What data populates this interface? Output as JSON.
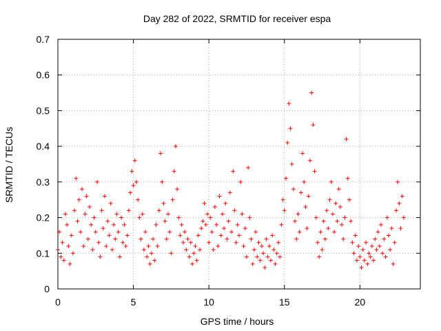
{
  "chart_data": {
    "type": "scatter",
    "title": "Day 282 of 2022, SRMTID for receiver espa",
    "xlabel": "GPS time / hours",
    "ylabel": "SRMTID / TECUs",
    "xlim": [
      0,
      24
    ],
    "ylim": [
      0,
      0.7
    ],
    "xticks": [
      0,
      5,
      10,
      15,
      20
    ],
    "yticks": [
      0,
      0.1,
      0.2,
      0.3,
      0.4,
      0.5,
      0.6,
      0.7
    ],
    "grid": true,
    "marker": "+",
    "color": "#ff0000",
    "series": [
      {
        "name": "SRMTID",
        "points": [
          [
            0.0,
            0.11
          ],
          [
            0.1,
            0.16
          ],
          [
            0.2,
            0.09
          ],
          [
            0.3,
            0.13
          ],
          [
            0.4,
            0.08
          ],
          [
            0.5,
            0.21
          ],
          [
            0.6,
            0.18
          ],
          [
            0.7,
            0.12
          ],
          [
            0.8,
            0.07
          ],
          [
            0.9,
            0.15
          ],
          [
            1.0,
            0.1
          ],
          [
            1.1,
            0.22
          ],
          [
            1.2,
            0.31
          ],
          [
            1.3,
            0.19
          ],
          [
            1.4,
            0.25
          ],
          [
            1.5,
            0.16
          ],
          [
            1.6,
            0.28
          ],
          [
            1.7,
            0.12
          ],
          [
            1.8,
            0.21
          ],
          [
            1.9,
            0.26
          ],
          [
            2.0,
            0.14
          ],
          [
            2.1,
            0.23
          ],
          [
            2.2,
            0.18
          ],
          [
            2.3,
            0.11
          ],
          [
            2.4,
            0.2
          ],
          [
            2.5,
            0.16
          ],
          [
            2.6,
            0.3
          ],
          [
            2.7,
            0.13
          ],
          [
            2.8,
            0.09
          ],
          [
            2.9,
            0.22
          ],
          [
            3.0,
            0.17
          ],
          [
            3.1,
            0.26
          ],
          [
            3.2,
            0.12
          ],
          [
            3.3,
            0.19
          ],
          [
            3.4,
            0.15
          ],
          [
            3.5,
            0.24
          ],
          [
            3.6,
            0.11
          ],
          [
            3.7,
            0.18
          ],
          [
            3.8,
            0.14
          ],
          [
            3.9,
            0.21
          ],
          [
            4.0,
            0.16
          ],
          [
            4.1,
            0.09
          ],
          [
            4.2,
            0.2
          ],
          [
            4.3,
            0.13
          ],
          [
            4.4,
            0.18
          ],
          [
            4.5,
            0.12
          ],
          [
            4.6,
            0.15
          ],
          [
            4.7,
            0.22
          ],
          [
            4.8,
            0.27
          ],
          [
            4.9,
            0.33
          ],
          [
            5.0,
            0.29
          ],
          [
            5.1,
            0.36
          ],
          [
            5.2,
            0.3
          ],
          [
            5.3,
            0.25
          ],
          [
            5.4,
            0.2
          ],
          [
            5.5,
            0.14
          ],
          [
            5.6,
            0.21
          ],
          [
            5.7,
            0.11
          ],
          [
            5.8,
            0.16
          ],
          [
            5.9,
            0.09
          ],
          [
            6.0,
            0.12
          ],
          [
            6.1,
            0.07
          ],
          [
            6.2,
            0.1
          ],
          [
            6.3,
            0.14
          ],
          [
            6.4,
            0.08
          ],
          [
            6.5,
            0.18
          ],
          [
            6.6,
            0.12
          ],
          [
            6.7,
            0.22
          ],
          [
            6.8,
            0.38
          ],
          [
            6.9,
            0.3
          ],
          [
            7.0,
            0.24
          ],
          [
            7.1,
            0.19
          ],
          [
            7.2,
            0.14
          ],
          [
            7.3,
            0.21
          ],
          [
            7.4,
            0.16
          ],
          [
            7.5,
            0.1
          ],
          [
            7.6,
            0.25
          ],
          [
            7.7,
            0.33
          ],
          [
            7.8,
            0.4
          ],
          [
            7.9,
            0.28
          ],
          [
            8.0,
            0.2
          ],
          [
            8.1,
            0.15
          ],
          [
            8.2,
            0.18
          ],
          [
            8.3,
            0.13
          ],
          [
            8.4,
            0.16
          ],
          [
            8.5,
            0.11
          ],
          [
            8.6,
            0.14
          ],
          [
            8.7,
            0.09
          ],
          [
            8.8,
            0.13
          ],
          [
            8.9,
            0.07
          ],
          [
            9.0,
            0.1
          ],
          [
            9.1,
            0.12
          ],
          [
            9.2,
            0.08
          ],
          [
            9.3,
            0.15
          ],
          [
            9.4,
            0.11
          ],
          [
            9.5,
            0.17
          ],
          [
            9.6,
            0.19
          ],
          [
            9.7,
            0.24
          ],
          [
            9.8,
            0.18
          ],
          [
            9.9,
            0.21
          ],
          [
            10.0,
            0.13
          ],
          [
            10.1,
            0.2
          ],
          [
            10.2,
            0.16
          ],
          [
            10.3,
            0.11
          ],
          [
            10.4,
            0.23
          ],
          [
            10.5,
            0.18
          ],
          [
            10.6,
            0.12
          ],
          [
            10.7,
            0.26
          ],
          [
            10.8,
            0.15
          ],
          [
            10.9,
            0.21
          ],
          [
            11.0,
            0.17
          ],
          [
            11.1,
            0.24
          ],
          [
            11.2,
            0.14
          ],
          [
            11.3,
            0.19
          ],
          [
            11.4,
            0.27
          ],
          [
            11.5,
            0.16
          ],
          [
            11.6,
            0.33
          ],
          [
            11.7,
            0.22
          ],
          [
            11.8,
            0.13
          ],
          [
            11.9,
            0.18
          ],
          [
            12.0,
            0.15
          ],
          [
            12.1,
            0.3
          ],
          [
            12.2,
            0.21
          ],
          [
            12.3,
            0.12
          ],
          [
            12.4,
            0.17
          ],
          [
            12.5,
            0.09
          ],
          [
            12.6,
            0.34
          ],
          [
            12.7,
            0.2
          ],
          [
            12.8,
            0.14
          ],
          [
            12.9,
            0.07
          ],
          [
            13.0,
            0.11
          ],
          [
            13.1,
            0.16
          ],
          [
            13.2,
            0.09
          ],
          [
            13.3,
            0.13
          ],
          [
            13.4,
            0.08
          ],
          [
            13.5,
            0.12
          ],
          [
            13.6,
            0.1
          ],
          [
            13.7,
            0.06
          ],
          [
            13.8,
            0.14
          ],
          [
            13.9,
            0.09
          ],
          [
            14.0,
            0.12
          ],
          [
            14.1,
            0.08
          ],
          [
            14.2,
            0.15
          ],
          [
            14.3,
            0.11
          ],
          [
            14.4,
            0.07
          ],
          [
            14.5,
            0.1
          ],
          [
            14.6,
            0.13
          ],
          [
            14.7,
            0.09
          ],
          [
            14.8,
            0.18
          ],
          [
            14.9,
            0.25
          ],
          [
            15.0,
            0.22
          ],
          [
            15.1,
            0.31
          ],
          [
            15.2,
            0.41
          ],
          [
            15.3,
            0.52
          ],
          [
            15.4,
            0.45
          ],
          [
            15.5,
            0.35
          ],
          [
            15.6,
            0.28
          ],
          [
            15.7,
            0.19
          ],
          [
            15.8,
            0.14
          ],
          [
            15.9,
            0.21
          ],
          [
            16.0,
            0.16
          ],
          [
            16.1,
            0.27
          ],
          [
            16.2,
            0.38
          ],
          [
            16.3,
            0.3
          ],
          [
            16.4,
            0.23
          ],
          [
            16.5,
            0.17
          ],
          [
            16.6,
            0.26
          ],
          [
            16.7,
            0.36
          ],
          [
            16.8,
            0.55
          ],
          [
            16.9,
            0.46
          ],
          [
            17.0,
            0.33
          ],
          [
            17.1,
            0.2
          ],
          [
            17.2,
            0.13
          ],
          [
            17.3,
            0.09
          ],
          [
            17.4,
            0.16
          ],
          [
            17.5,
            0.11
          ],
          [
            17.6,
            0.19
          ],
          [
            17.7,
            0.14
          ],
          [
            17.8,
            0.22
          ],
          [
            17.9,
            0.17
          ],
          [
            18.0,
            0.25
          ],
          [
            18.1,
            0.3
          ],
          [
            18.2,
            0.21
          ],
          [
            18.3,
            0.16
          ],
          [
            18.4,
            0.24
          ],
          [
            18.5,
            0.19
          ],
          [
            18.6,
            0.28
          ],
          [
            18.7,
            0.23
          ],
          [
            18.8,
            0.18
          ],
          [
            18.9,
            0.14
          ],
          [
            19.0,
            0.2
          ],
          [
            19.1,
            0.42
          ],
          [
            19.2,
            0.31
          ],
          [
            19.3,
            0.25
          ],
          [
            19.4,
            0.19
          ],
          [
            19.5,
            0.13
          ],
          [
            19.6,
            0.1
          ],
          [
            19.7,
            0.15
          ],
          [
            19.8,
            0.08
          ],
          [
            19.9,
            0.12
          ],
          [
            20.0,
            0.09
          ],
          [
            20.1,
            0.06
          ],
          [
            20.2,
            0.11
          ],
          [
            20.3,
            0.08
          ],
          [
            20.4,
            0.13
          ],
          [
            20.5,
            0.07
          ],
          [
            20.6,
            0.1
          ],
          [
            20.7,
            0.09
          ],
          [
            20.8,
            0.12
          ],
          [
            20.9,
            0.08
          ],
          [
            21.0,
            0.14
          ],
          [
            21.1,
            0.11
          ],
          [
            21.2,
            0.16
          ],
          [
            21.3,
            0.12
          ],
          [
            21.4,
            0.18
          ],
          [
            21.5,
            0.1
          ],
          [
            21.6,
            0.14
          ],
          [
            21.7,
            0.09
          ],
          [
            21.8,
            0.2
          ],
          [
            21.9,
            0.15
          ],
          [
            22.0,
            0.11
          ],
          [
            22.1,
            0.17
          ],
          [
            22.2,
            0.07
          ],
          [
            22.3,
            0.13
          ],
          [
            22.4,
            0.22
          ],
          [
            22.5,
            0.3
          ],
          [
            22.6,
            0.24
          ],
          [
            22.7,
            0.17
          ],
          [
            22.8,
            0.26
          ],
          [
            22.9,
            0.2
          ]
        ]
      }
    ]
  }
}
